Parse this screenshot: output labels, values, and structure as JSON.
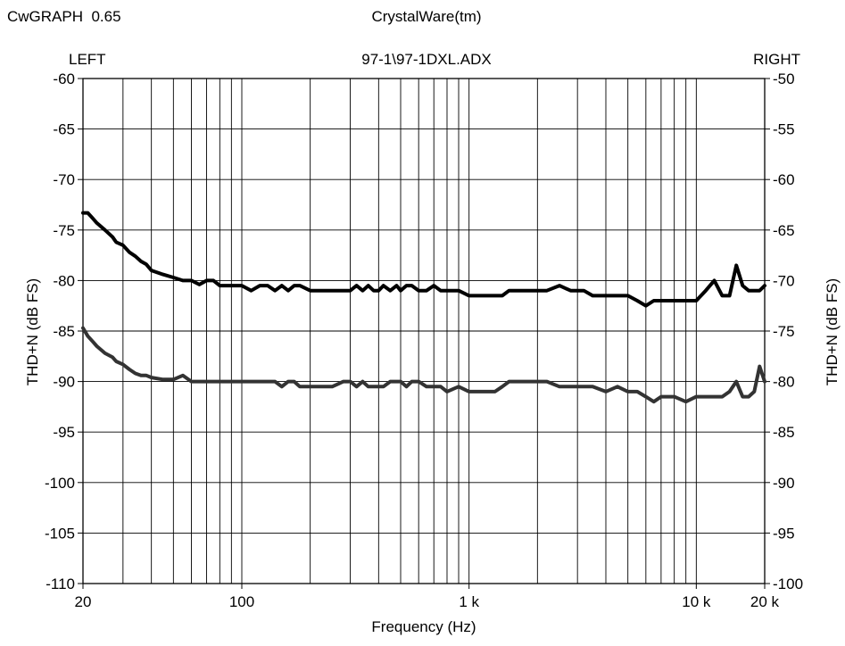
{
  "header": {
    "app_name": "CwGRAPH  0.65",
    "company": "CrystalWare(tm)",
    "left_label": "LEFT",
    "file_name": "97-1\\97-1DXL.ADX",
    "right_label": "RIGHT"
  },
  "chart_data": {
    "type": "line",
    "title": "97-1\\97-1DXL.ADX",
    "xlabel": "Frequency (Hz)",
    "ylabel_left": "THD+N (dB FS)",
    "ylabel_right": "THD+N (dB FS)",
    "x_scale": "log",
    "xlim": [
      20,
      20000
    ],
    "ylim_left": [
      -110,
      -60
    ],
    "ylim_right": [
      -100,
      -50
    ],
    "grid": true,
    "x_ticks": [
      {
        "value": 20,
        "label": "20"
      },
      {
        "value": 100,
        "label": "100"
      },
      {
        "value": 1000,
        "label": "1 k"
      },
      {
        "value": 10000,
        "label": "10 k"
      },
      {
        "value": 20000,
        "label": "20 k"
      }
    ],
    "y_ticks_left": [
      "-60",
      "-65",
      "-70",
      "-75",
      "-80",
      "-85",
      "-90",
      "-95",
      "-100",
      "-105",
      "-110"
    ],
    "y_ticks_right": [
      "-50",
      "-55",
      "-60",
      "-65",
      "-70",
      "-75",
      "-80",
      "-85",
      "-90",
      "-95",
      "-100"
    ],
    "series": [
      {
        "axis": "left",
        "color": "#000000",
        "x": [
          20,
          21,
          22,
          23,
          25,
          27,
          28,
          30,
          32,
          34,
          36,
          38,
          40,
          45,
          50,
          55,
          60,
          65,
          70,
          75,
          80,
          90,
          100,
          110,
          120,
          130,
          140,
          150,
          160,
          170,
          180,
          200,
          220,
          250,
          280,
          300,
          320,
          340,
          360,
          380,
          400,
          420,
          450,
          480,
          500,
          530,
          560,
          600,
          650,
          700,
          750,
          800,
          900,
          1000,
          1100,
          1200,
          1300,
          1400,
          1500,
          1600,
          1800,
          2000,
          2200,
          2500,
          2800,
          3000,
          3200,
          3500,
          4000,
          4500,
          5000,
          5500,
          6000,
          6500,
          7000,
          7500,
          8000,
          9000,
          10000,
          11000,
          12000,
          13000,
          14000,
          15000,
          16000,
          17000,
          18000,
          19000,
          20000
        ],
        "y": [
          -73.3,
          -73.3,
          -73.8,
          -74.3,
          -75.0,
          -75.7,
          -76.2,
          -76.5,
          -77.2,
          -77.6,
          -78.1,
          -78.4,
          -79.0,
          -79.4,
          -79.7,
          -80.0,
          -80.0,
          -80.4,
          -80.0,
          -80.0,
          -80.5,
          -80.5,
          -80.5,
          -81.0,
          -80.5,
          -80.5,
          -81.0,
          -80.5,
          -81.0,
          -80.5,
          -80.5,
          -81.0,
          -81.0,
          -81.0,
          -81.0,
          -81.0,
          -80.5,
          -81.0,
          -80.5,
          -81.0,
          -81.0,
          -80.5,
          -81.0,
          -80.5,
          -81.0,
          -80.5,
          -80.5,
          -81.0,
          -81.0,
          -80.5,
          -81.0,
          -81.0,
          -81.0,
          -81.5,
          -81.5,
          -81.5,
          -81.5,
          -81.5,
          -81.0,
          -81.0,
          -81.0,
          -81.0,
          -81.0,
          -80.5,
          -81.0,
          -81.0,
          -81.0,
          -81.5,
          -81.5,
          -81.5,
          -81.5,
          -82.0,
          -82.5,
          -82.0,
          -82.0,
          -82.0,
          -82.0,
          -82.0,
          -82.0,
          -81.0,
          -80.0,
          -81.5,
          -81.5,
          -78.5,
          -80.5,
          -81.0,
          -81.0,
          -81.0,
          -80.5
        ]
      },
      {
        "axis": "right",
        "color": "#333333",
        "x": [
          20,
          21,
          22,
          23,
          25,
          27,
          28,
          30,
          32,
          34,
          36,
          38,
          40,
          45,
          50,
          55,
          60,
          65,
          70,
          75,
          80,
          90,
          100,
          110,
          120,
          130,
          140,
          150,
          160,
          170,
          180,
          200,
          220,
          250,
          280,
          300,
          320,
          340,
          360,
          380,
          400,
          420,
          450,
          480,
          500,
          530,
          560,
          600,
          650,
          700,
          750,
          800,
          900,
          1000,
          1100,
          1200,
          1300,
          1400,
          1500,
          1600,
          1800,
          2000,
          2200,
          2500,
          2800,
          3000,
          3200,
          3500,
          4000,
          4500,
          5000,
          5500,
          6000,
          6500,
          7000,
          7500,
          8000,
          9000,
          10000,
          11000,
          12000,
          13000,
          14000,
          15000,
          16000,
          17000,
          18000,
          19000,
          20000
        ],
        "y": [
          -74.7,
          -75.5,
          -76.0,
          -76.5,
          -77.2,
          -77.6,
          -78.0,
          -78.3,
          -78.8,
          -79.2,
          -79.4,
          -79.4,
          -79.6,
          -79.8,
          -79.8,
          -79.4,
          -80.0,
          -80.0,
          -80.0,
          -80.0,
          -80.0,
          -80.0,
          -80.0,
          -80.0,
          -80.0,
          -80.0,
          -80.0,
          -80.5,
          -80.0,
          -80.0,
          -80.5,
          -80.5,
          -80.5,
          -80.5,
          -80.0,
          -80.0,
          -80.5,
          -80.0,
          -80.5,
          -80.5,
          -80.5,
          -80.5,
          -80.0,
          -80.0,
          -80.0,
          -80.5,
          -80.0,
          -80.0,
          -80.5,
          -80.5,
          -80.5,
          -81.0,
          -80.5,
          -81.0,
          -81.0,
          -81.0,
          -81.0,
          -80.5,
          -80.0,
          -80.0,
          -80.0,
          -80.0,
          -80.0,
          -80.5,
          -80.5,
          -80.5,
          -80.5,
          -80.5,
          -81.0,
          -80.5,
          -81.0,
          -81.0,
          -81.5,
          -82.0,
          -81.5,
          -81.5,
          -81.5,
          -82.0,
          -81.5,
          -81.5,
          -81.5,
          -81.5,
          -81.0,
          -80.0,
          -81.5,
          -81.5,
          -81.0,
          -78.5,
          -80.0
        ]
      }
    ]
  }
}
